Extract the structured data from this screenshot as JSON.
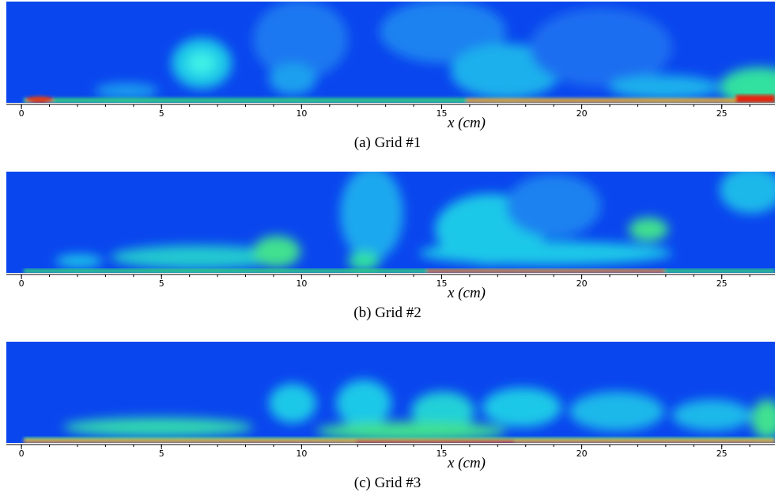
{
  "panels": [
    {
      "caption": "(a) Grid #1",
      "xlabel": "x (cm)",
      "xlim": [
        -0.54,
        26.9
      ],
      "xticks": [
        0,
        5,
        10,
        15,
        20,
        25
      ]
    },
    {
      "caption": "(b) Grid #2",
      "xlabel": "x (cm)",
      "xlim": [
        -0.54,
        26.9
      ],
      "xticks": [
        0,
        5,
        10,
        15,
        20,
        25
      ]
    },
    {
      "caption": "(c) Grid #3",
      "xlabel": "x (cm)",
      "xlim": [
        -0.54,
        26.9
      ],
      "xticks": [
        0,
        5,
        10,
        15,
        20,
        25
      ]
    }
  ]
}
